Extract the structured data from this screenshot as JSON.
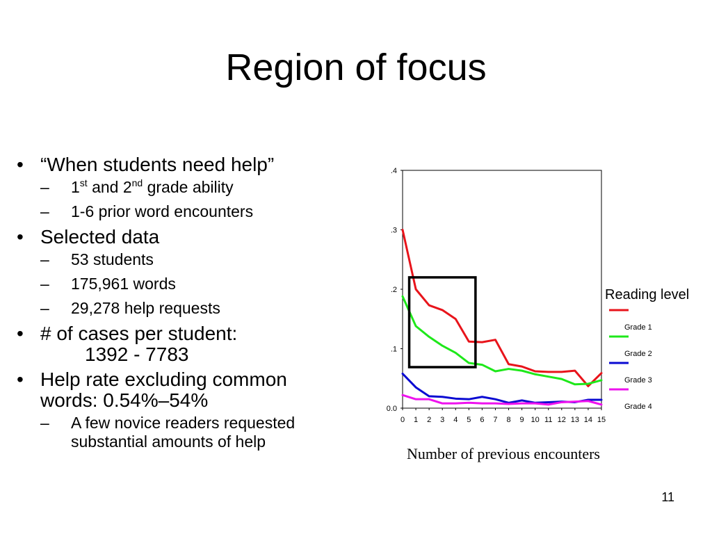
{
  "title": "Region of focus",
  "bullets": [
    {
      "text": "“When students need help”",
      "sub": [
        {
          "parts": [
            {
              "t": "1"
            },
            {
              "sup": "st"
            },
            {
              "t": " and 2"
            },
            {
              "sup": "nd"
            },
            {
              "t": " grade ability"
            }
          ]
        },
        {
          "parts": [
            {
              "t": "1-6 prior word encounters"
            }
          ]
        }
      ]
    },
    {
      "text": "Selected data",
      "sub": [
        {
          "parts": [
            {
              "t": "53 students"
            }
          ]
        },
        {
          "parts": [
            {
              "t": "175,961 words"
            }
          ]
        },
        {
          "parts": [
            {
              "t": "29,278 help requests"
            }
          ]
        }
      ]
    },
    {
      "text": "# of cases per student:",
      "continuation": "1392 - 7783",
      "sub": []
    },
    {
      "text": "Help rate excluding common words: 0.54%–54%",
      "sub": [
        {
          "parts": [
            {
              "t": "A few novice readers requested substantial amounts of help"
            }
          ]
        }
      ]
    }
  ],
  "chart_data": {
    "type": "line",
    "x": [
      0,
      1,
      2,
      3,
      4,
      5,
      6,
      7,
      8,
      9,
      10,
      11,
      12,
      13,
      14,
      15
    ],
    "xlim": [
      0,
      15
    ],
    "ylim": [
      0,
      0.4
    ],
    "yticks": [
      {
        "v": 0,
        "label": "0.0"
      },
      {
        "v": 0.1,
        "label": ".1"
      },
      {
        "v": 0.2,
        "label": ".2"
      },
      {
        "v": 0.3,
        "label": ".3"
      },
      {
        "v": 0.4,
        "label": ".4"
      }
    ],
    "xlabel": "Number of previous encounters",
    "ylabel": "",
    "legend_title": "Reading level",
    "legend_position": "right",
    "grid": false,
    "series": [
      {
        "name": "Grade 1",
        "color": "#e8141b",
        "values": [
          0.3,
          0.2,
          0.173,
          0.165,
          0.15,
          0.112,
          0.111,
          0.115,
          0.074,
          0.07,
          0.062,
          0.061,
          0.061,
          0.063,
          0.037,
          0.059
        ]
      },
      {
        "name": "Grade 2",
        "color": "#1ee81a",
        "values": [
          0.188,
          0.138,
          0.12,
          0.105,
          0.093,
          0.076,
          0.073,
          0.062,
          0.066,
          0.063,
          0.057,
          0.053,
          0.049,
          0.04,
          0.041,
          0.047
        ]
      },
      {
        "name": "Grade 3",
        "color": "#0a0ad2",
        "values": [
          0.058,
          0.035,
          0.02,
          0.019,
          0.016,
          0.015,
          0.019,
          0.015,
          0.009,
          0.013,
          0.009,
          0.01,
          0.011,
          0.01,
          0.014,
          0.014
        ]
      },
      {
        "name": "Grade 4",
        "color": "#ee12ee",
        "values": [
          0.022,
          0.015,
          0.015,
          0.008,
          0.008,
          0.009,
          0.008,
          0.008,
          0.007,
          0.008,
          0.008,
          0.006,
          0.01,
          0.011,
          0.012,
          0.006
        ]
      }
    ],
    "highlight": {
      "x_from": 0.5,
      "x_to": 5.5,
      "y_from": 0.069,
      "y_to": 0.22
    }
  },
  "page_number": "11"
}
